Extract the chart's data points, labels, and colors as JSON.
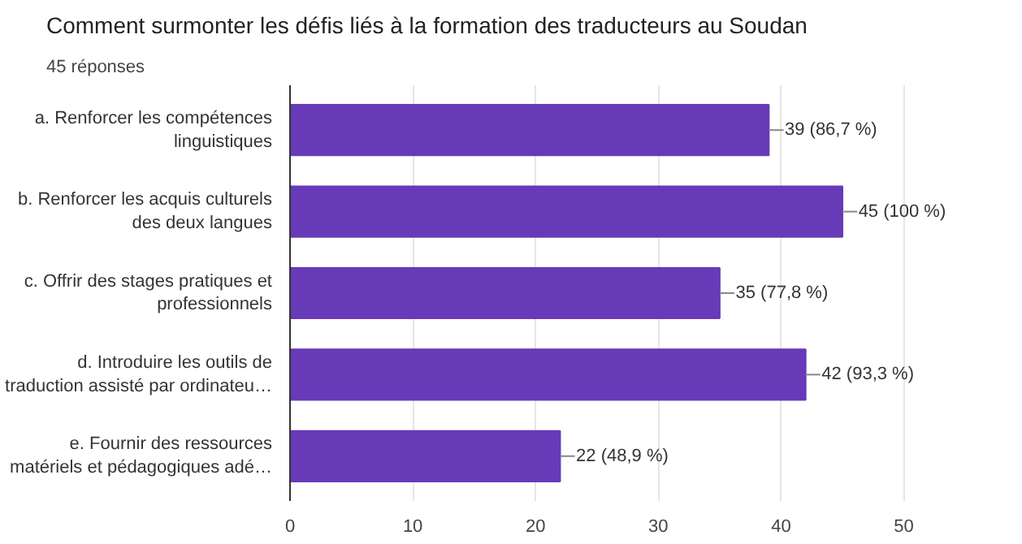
{
  "chart_data": {
    "type": "bar",
    "orientation": "horizontal",
    "title": "Comment surmonter les défis liés à la formation des traducteurs au Soudan",
    "subtitle": "45 réponses",
    "categories": [
      "a. Renforcer les compétences\nlinguistiques",
      "b. Renforcer les acquis culturels\ndes deux langues",
      "c. Offrir des stages pratiques et\nprofessionnels",
      "d. Introduire les outils de\ntraduction assisté par ordinateu…",
      "e. Fournir des ressources\nmatériels et pédagogiques adé…"
    ],
    "values": [
      39,
      45,
      35,
      42,
      22
    ],
    "value_labels": [
      "39 (86,7 %)",
      "45 (100 %)",
      "35 (77,8 %)",
      "42 (93,3 %)",
      "22 (48,9 %)"
    ],
    "color": "#673ab7",
    "xlim": [
      0,
      50
    ],
    "xticks": [
      0,
      10,
      20,
      30,
      40,
      50
    ],
    "grid": "x"
  }
}
